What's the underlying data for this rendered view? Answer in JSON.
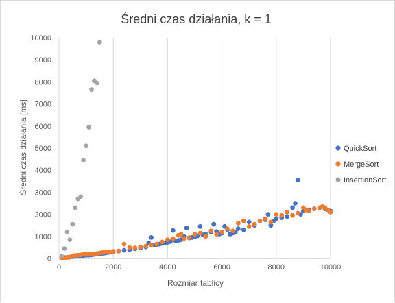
{
  "chart_data": {
    "type": "scatter",
    "title": "Średni czas działania, k = 1",
    "xlabel": "Rozmiar tablicy",
    "ylabel": "Średni czas działania [ms]",
    "xlim": [
      0,
      10000
    ],
    "ylim": [
      0,
      10000
    ],
    "xticks": [
      0,
      2000,
      4000,
      6000,
      8000,
      10000
    ],
    "yticks": [
      0,
      1000,
      2000,
      3000,
      4000,
      5000,
      6000,
      7000,
      8000,
      9000,
      10000
    ],
    "grid": "vertical",
    "legend_position": "right",
    "series": [
      {
        "name": "QuickSort",
        "color": "#4472c4",
        "points": [
          [
            100,
            30
          ],
          [
            200,
            40
          ],
          [
            300,
            50
          ],
          [
            400,
            60
          ],
          [
            500,
            80
          ],
          [
            600,
            90
          ],
          [
            700,
            100
          ],
          [
            800,
            120
          ],
          [
            900,
            130
          ],
          [
            1000,
            140
          ],
          [
            1100,
            150
          ],
          [
            1200,
            160
          ],
          [
            1300,
            180
          ],
          [
            1400,
            200
          ],
          [
            1500,
            210
          ],
          [
            1600,
            230
          ],
          [
            1700,
            240
          ],
          [
            1800,
            260
          ],
          [
            1900,
            280
          ],
          [
            2000,
            300
          ],
          [
            2200,
            330
          ],
          [
            2400,
            370
          ],
          [
            2600,
            400
          ],
          [
            2800,
            440
          ],
          [
            3000,
            480
          ],
          [
            3200,
            520
          ],
          [
            3300,
            700
          ],
          [
            3400,
            950
          ],
          [
            3500,
            600
          ],
          [
            3600,
            620
          ],
          [
            3700,
            650
          ],
          [
            3800,
            680
          ],
          [
            3900,
            700
          ],
          [
            4000,
            730
          ],
          [
            4100,
            760
          ],
          [
            4200,
            1270
          ],
          [
            4300,
            790
          ],
          [
            4400,
            820
          ],
          [
            4500,
            850
          ],
          [
            4600,
            1000
          ],
          [
            4700,
            1380
          ],
          [
            4800,
            930
          ],
          [
            4900,
            950
          ],
          [
            5000,
            980
          ],
          [
            5100,
            1020
          ],
          [
            5200,
            1450
          ],
          [
            5300,
            1070
          ],
          [
            5400,
            1100
          ],
          [
            5600,
            1200
          ],
          [
            5700,
            1550
          ],
          [
            5800,
            1220
          ],
          [
            5900,
            1100
          ],
          [
            6000,
            1150
          ],
          [
            6100,
            1450
          ],
          [
            6200,
            1300
          ],
          [
            6300,
            1100
          ],
          [
            6400,
            1150
          ],
          [
            6500,
            1200
          ],
          [
            6600,
            1350
          ],
          [
            6800,
            1300
          ],
          [
            7000,
            1650
          ],
          [
            7200,
            1500
          ],
          [
            7400,
            1700
          ],
          [
            7600,
            1750
          ],
          [
            7700,
            2000
          ],
          [
            7800,
            1500
          ],
          [
            7900,
            1700
          ],
          [
            8000,
            1800
          ],
          [
            8200,
            1850
          ],
          [
            8400,
            1900
          ],
          [
            8600,
            2300
          ],
          [
            8700,
            2500
          ],
          [
            8800,
            3550
          ],
          [
            8900,
            2000
          ],
          [
            9000,
            2150
          ],
          [
            9200,
            2200
          ],
          [
            9400,
            2250
          ],
          [
            9600,
            2300
          ],
          [
            9800,
            2250
          ],
          [
            10000,
            2150
          ]
        ]
      },
      {
        "name": "MergeSort",
        "color": "#ed7d31",
        "points": [
          [
            100,
            20
          ],
          [
            200,
            30
          ],
          [
            300,
            40
          ],
          [
            400,
            60
          ],
          [
            500,
            120
          ],
          [
            600,
            140
          ],
          [
            700,
            150
          ],
          [
            800,
            160
          ],
          [
            900,
            200
          ],
          [
            1000,
            180
          ],
          [
            1100,
            190
          ],
          [
            1200,
            200
          ],
          [
            1300,
            210
          ],
          [
            1400,
            230
          ],
          [
            1500,
            250
          ],
          [
            1600,
            270
          ],
          [
            1700,
            280
          ],
          [
            1800,
            300
          ],
          [
            1900,
            310
          ],
          [
            2000,
            320
          ],
          [
            2200,
            340
          ],
          [
            2400,
            650
          ],
          [
            2600,
            500
          ],
          [
            2800,
            480
          ],
          [
            3000,
            520
          ],
          [
            3200,
            560
          ],
          [
            3400,
            600
          ],
          [
            3600,
            650
          ],
          [
            3800,
            750
          ],
          [
            4000,
            850
          ],
          [
            4200,
            900
          ],
          [
            4400,
            1050
          ],
          [
            4500,
            1100
          ],
          [
            4600,
            900
          ],
          [
            4800,
            950
          ],
          [
            5000,
            1100
          ],
          [
            5200,
            1150
          ],
          [
            5400,
            1000
          ],
          [
            5600,
            1250
          ],
          [
            5800,
            1100
          ],
          [
            6000,
            1200
          ],
          [
            6200,
            1350
          ],
          [
            6400,
            1250
          ],
          [
            6600,
            1600
          ],
          [
            6800,
            1700
          ],
          [
            7000,
            1450
          ],
          [
            7200,
            1550
          ],
          [
            7400,
            1700
          ],
          [
            7600,
            1800
          ],
          [
            7800,
            1650
          ],
          [
            8000,
            2000
          ],
          [
            8200,
            1950
          ],
          [
            8400,
            2100
          ],
          [
            8600,
            1950
          ],
          [
            8800,
            2050
          ],
          [
            9000,
            2300
          ],
          [
            9100,
            2200
          ],
          [
            9200,
            2150
          ],
          [
            9400,
            2250
          ],
          [
            9600,
            2300
          ],
          [
            9700,
            2350
          ],
          [
            9800,
            2300
          ],
          [
            9900,
            2200
          ],
          [
            10000,
            2100
          ]
        ]
      },
      {
        "name": "InsertionSort",
        "color": "#a5a5a5",
        "points": [
          [
            100,
            100
          ],
          [
            200,
            450
          ],
          [
            300,
            1200
          ],
          [
            400,
            850
          ],
          [
            500,
            1550
          ],
          [
            600,
            2300
          ],
          [
            700,
            2700
          ],
          [
            800,
            2800
          ],
          [
            900,
            4450
          ],
          [
            1000,
            5100
          ],
          [
            1100,
            5950
          ],
          [
            1200,
            7650
          ],
          [
            1300,
            8050
          ],
          [
            1400,
            7950
          ],
          [
            1500,
            9800
          ]
        ]
      }
    ]
  }
}
